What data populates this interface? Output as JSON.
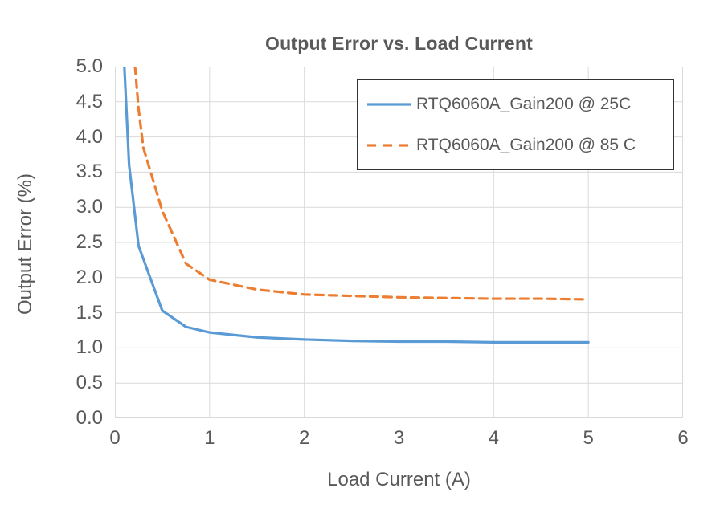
{
  "chart_data": {
    "type": "line",
    "title": "Output Error vs. Load Current",
    "xlabel": "Load Current (A)",
    "ylabel": "Output Error (%)",
    "xlim": [
      0,
      6
    ],
    "ylim": [
      0,
      5
    ],
    "x_ticks": [
      "0",
      "1",
      "2",
      "3",
      "4",
      "5",
      "6"
    ],
    "y_ticks": [
      "0.0",
      "0.5",
      "1.0",
      "1.5",
      "2.0",
      "2.5",
      "3.0",
      "3.5",
      "4.0",
      "4.5",
      "5.0"
    ],
    "grid": true,
    "legend_position": "inside-top-right",
    "series": [
      {
        "name": "RTQ6060A_Gain200 @ 25C",
        "color": "#5B9BD5",
        "style": "solid",
        "x": [
          0.1,
          0.15,
          0.25,
          0.5,
          0.75,
          1.0,
          1.5,
          2.0,
          2.5,
          3.0,
          3.5,
          4.0,
          4.5,
          5.0
        ],
        "y": [
          5.0,
          3.6,
          2.45,
          1.53,
          1.3,
          1.22,
          1.15,
          1.12,
          1.1,
          1.09,
          1.09,
          1.08,
          1.08,
          1.08
        ]
      },
      {
        "name": "RTQ6060A_Gain200 @ 85 C",
        "color": "#ED7D31",
        "style": "dashed",
        "x": [
          0.2,
          0.25,
          0.3,
          0.5,
          0.75,
          1.0,
          1.5,
          2.0,
          2.5,
          3.0,
          3.5,
          4.0,
          4.5,
          5.0
        ],
        "y": [
          5.2,
          4.4,
          3.85,
          2.95,
          2.2,
          1.97,
          1.83,
          1.76,
          1.74,
          1.72,
          1.71,
          1.7,
          1.7,
          1.69
        ]
      }
    ],
    "colors": {
      "text": "#595959",
      "grid": "#D9D9D9",
      "plot_border": "#D9D9D9",
      "background": "#FFFFFF",
      "legend_border": "#333333"
    }
  }
}
